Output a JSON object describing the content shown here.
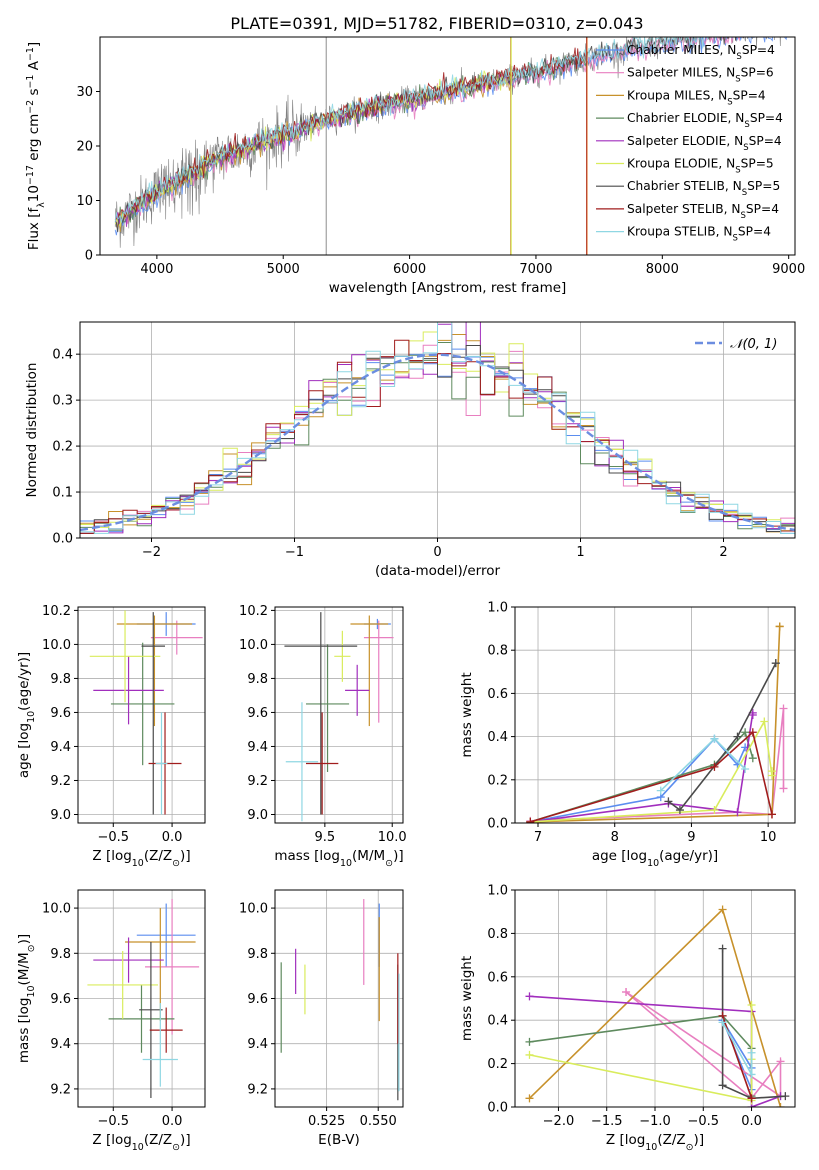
{
  "figure_title": "PLATE=0391, MJD=51782, FIBERID=0310, z=0.043",
  "model_colors": [
    "#5b8def",
    "#e87fc0",
    "#c7912b",
    "#5e8a5e",
    "#a12ebd",
    "#d9ec5c",
    "#4a4a4a",
    "#a11d1d",
    "#8fd7e3"
  ],
  "chart_data": [
    {
      "id": "spectrum",
      "type": "line",
      "xlabel": "wavelength [Angstrom, rest frame]",
      "ylabel": "Flux [f_λ10^-17 erg cm^-2 s^-1 A^-1]",
      "xlim": [
        3550,
        9050
      ],
      "ylim": [
        0,
        40
      ],
      "xticks": [
        4000,
        5000,
        6000,
        7000,
        8000,
        9000
      ],
      "yticks": [
        0,
        10,
        20,
        30
      ],
      "legend_position": "right",
      "legend": [
        "Chabrier MILES, N_SSP=4",
        "Salpeter MILES, N_SSP=6",
        "Kroupa MILES, N_SSP=4",
        "Chabrier ELODIE, N_SSP=4",
        "Salpeter ELODIE, N_SSP=4",
        "Kroupa ELODIE, N_SSP=5",
        "Chabrier STELIB, N_SSP=5",
        "Salpeter STELIB, N_SSP=4",
        "Kroupa STELIB, N_SSP=4"
      ],
      "continuum_trend": {
        "x": [
          3670,
          4000,
          4500,
          5000,
          5500,
          6000,
          6500,
          7000,
          7400,
          7800,
          8200,
          8600,
          9000
        ],
        "y": [
          6,
          11.5,
          18,
          22,
          26,
          28.5,
          31,
          33.5,
          36,
          38,
          39.5,
          41,
          42
        ]
      }
    },
    {
      "id": "residuals",
      "type": "histogram",
      "xlabel": "(data-model)/error",
      "ylabel": "Normed distribution",
      "xlim": [
        -2.5,
        2.5
      ],
      "ylim": [
        0,
        0.47
      ],
      "xticks": [
        -2,
        -1,
        0,
        1,
        2
      ],
      "yticks": [
        0.0,
        0.1,
        0.2,
        0.3,
        0.4
      ],
      "legend": [
        "𝒩(0, 1)"
      ],
      "legend_position": "upper right",
      "grid": true,
      "bin_width": 0.1,
      "reference_curve": "standard normal pdf"
    },
    {
      "id": "age_vs_Z",
      "type": "errorbar",
      "xlabel": "Z [log10(Z/Z⊙)]",
      "ylabel": "age [log10(age/yr)]",
      "xlim": [
        -0.8,
        0.28
      ],
      "ylim": [
        8.95,
        10.22
      ],
      "xticks": [
        -0.5,
        0.0
      ],
      "yticks": [
        9.0,
        9.2,
        9.4,
        9.6,
        9.8,
        10.0,
        10.2
      ],
      "grid": true,
      "points": [
        {
          "x": -0.05,
          "xerr": [
            0.25,
            0.25
          ],
          "y": 10.12,
          "yerr": [
            0.07,
            0.07
          ]
        },
        {
          "x": 0.04,
          "xerr": [
            0.22,
            0.22
          ],
          "y": 10.04,
          "yerr": [
            0.1,
            0.1
          ]
        },
        {
          "x": -0.15,
          "xerr": [
            0.32,
            0.32
          ],
          "y": 10.12,
          "yerr": [
            0.6,
            0.05
          ]
        },
        {
          "x": -0.25,
          "xerr": [
            0.27,
            0.27
          ],
          "y": 9.65,
          "yerr": [
            0.36,
            0.36
          ]
        },
        {
          "x": -0.37,
          "xerr": [
            0.3,
            0.3
          ],
          "y": 9.73,
          "yerr": [
            0.2,
            0.2
          ]
        },
        {
          "x": -0.4,
          "xerr": [
            0.3,
            0.3
          ],
          "y": 9.93,
          "yerr": [
            0.27,
            0.27
          ]
        },
        {
          "x": -0.16,
          "xerr": [
            0.1,
            0.1
          ],
          "y": 9.99,
          "yerr": [
            0.99,
            0.2
          ]
        },
        {
          "x": -0.06,
          "xerr": [
            0.14,
            0.14
          ],
          "y": 9.3,
          "yerr": [
            0.3,
            0.3
          ]
        },
        {
          "x": -0.09,
          "xerr": [
            0.05,
            0.05
          ],
          "y": 9.3,
          "yerr": [
            0.3,
            0.3
          ]
        }
      ]
    },
    {
      "id": "age_vs_mass",
      "type": "errorbar",
      "xlabel": "mass [log10(M/M⊙)]",
      "ylabel": "",
      "xlim": [
        9.13,
        10.08
      ],
      "ylim": [
        8.95,
        10.22
      ],
      "xticks": [
        9.5,
        10.0
      ],
      "yticks": [
        9.0,
        9.2,
        9.4,
        9.6,
        9.8,
        10.0,
        10.2
      ],
      "grid": true,
      "points": [
        {
          "x": 9.89,
          "xerr": [
            0.1,
            0.1
          ],
          "y": 10.12,
          "yerr": [
            0.03,
            0.03
          ]
        },
        {
          "x": 9.9,
          "xerr": [
            0.11,
            0.11
          ],
          "y": 10.04,
          "yerr": [
            0.5,
            0.1
          ]
        },
        {
          "x": 9.83,
          "xerr": [
            0.14,
            0.14
          ],
          "y": 10.12,
          "yerr": [
            0.6,
            0.05
          ]
        },
        {
          "x": 9.52,
          "xerr": [
            0.16,
            0.16
          ],
          "y": 9.65,
          "yerr": [
            0.4,
            0.35
          ]
        },
        {
          "x": 9.74,
          "xerr": [
            0.09,
            0.09
          ],
          "y": 9.73,
          "yerr": [
            0.15,
            0.15
          ]
        },
        {
          "x": 9.63,
          "xerr": [
            0.06,
            0.06
          ],
          "y": 9.93,
          "yerr": [
            0.15,
            0.15
          ]
        },
        {
          "x": 9.47,
          "xerr": [
            0.27,
            0.27
          ],
          "y": 9.99,
          "yerr": [
            0.99,
            0.2
          ]
        },
        {
          "x": 9.48,
          "xerr": [
            0.12,
            0.12
          ],
          "y": 9.3,
          "yerr": [
            0.3,
            0.3
          ]
        },
        {
          "x": 9.33,
          "xerr": [
            0.12,
            0.12
          ],
          "y": 9.31,
          "yerr": [
            0.35,
            0.35
          ]
        }
      ]
    },
    {
      "id": "weight_vs_age",
      "type": "line",
      "xlabel": "age [log10(age/yr)]",
      "ylabel": "mass weight",
      "xlim": [
        6.7,
        10.35
      ],
      "ylim": [
        0.0,
        1.0
      ],
      "xticks": [
        7,
        8,
        9,
        10
      ],
      "yticks": [
        0.0,
        0.2,
        0.4,
        0.6,
        0.8,
        1.0
      ],
      "grid": true,
      "series": [
        {
          "x": [
            6.9,
            8.6,
            9.3,
            9.6,
            9.7
          ],
          "y": [
            0.005,
            0.12,
            0.39,
            0.27,
            0.35
          ]
        },
        {
          "x": [
            6.9,
            9.6,
            10.05,
            10.2,
            10.2
          ],
          "y": [
            0.01,
            0.05,
            0.04,
            0.53,
            0.16
          ]
        },
        {
          "x": [
            6.9,
            10.05,
            10.15,
            10.15
          ],
          "y": [
            0.005,
            0.04,
            0.91,
            0.91
          ]
        },
        {
          "x": [
            6.9,
            9.3,
            9.7,
            9.8
          ],
          "y": [
            0.005,
            0.27,
            0.42,
            0.3
          ]
        },
        {
          "x": [
            6.9,
            8.7,
            9.6,
            9.8,
            9.8
          ],
          "y": [
            0.005,
            0.09,
            0.05,
            0.51,
            0.5
          ]
        },
        {
          "x": [
            6.9,
            9.3,
            9.95,
            10.05,
            10.05
          ],
          "y": [
            0.005,
            0.06,
            0.47,
            0.22,
            0.24
          ]
        },
        {
          "x": [
            8.7,
            8.85,
            9.6,
            10.1,
            10.1
          ],
          "y": [
            0.1,
            0.06,
            0.4,
            0.74,
            0.74
          ]
        },
        {
          "x": [
            6.9,
            9.3,
            9.8,
            10.05
          ],
          "y": [
            0.005,
            0.26,
            0.42,
            0.04
          ]
        },
        {
          "x": [
            8.6,
            9.3,
            9.7
          ],
          "y": [
            0.15,
            0.39,
            0.25
          ]
        }
      ]
    },
    {
      "id": "mass_vs_Z",
      "type": "errorbar",
      "xlabel": "Z [log10(Z/Z⊙)]",
      "ylabel": "mass [log10(M/M⊙)]",
      "xlim": [
        -0.8,
        0.28
      ],
      "ylim": [
        9.12,
        10.08
      ],
      "xticks": [
        -0.5,
        0.0
      ],
      "yticks": [
        9.2,
        9.4,
        9.6,
        9.8,
        10.0
      ],
      "grid": true,
      "points": [
        {
          "x": -0.05,
          "xerr": [
            0.25,
            0.25
          ],
          "y": 9.88,
          "yerr": [
            0.14,
            0.14
          ]
        },
        {
          "x": 0.0,
          "xerr": [
            0.23,
            0.23
          ],
          "y": 9.74,
          "yerr": [
            0.3,
            0.3
          ]
        },
        {
          "x": -0.1,
          "xerr": [
            0.3,
            0.3
          ],
          "y": 9.85,
          "yerr": [
            0.35,
            0.15
          ]
        },
        {
          "x": -0.26,
          "xerr": [
            0.28,
            0.28
          ],
          "y": 9.51,
          "yerr": [
            0.15,
            0.15
          ]
        },
        {
          "x": -0.37,
          "xerr": [
            0.3,
            0.3
          ],
          "y": 9.77,
          "yerr": [
            0.1,
            0.1
          ]
        },
        {
          "x": -0.42,
          "xerr": [
            0.3,
            0.3
          ],
          "y": 9.66,
          "yerr": [
            0.15,
            0.15
          ]
        },
        {
          "x": -0.18,
          "xerr": [
            0.1,
            0.1
          ],
          "y": 9.55,
          "yerr": [
            0.39,
            0.3
          ]
        },
        {
          "x": -0.05,
          "xerr": [
            0.14,
            0.14
          ],
          "y": 9.46,
          "yerr": [
            0.1,
            0.1
          ]
        },
        {
          "x": -0.1,
          "xerr": [
            0.15,
            0.15
          ],
          "y": 9.33,
          "yerr": [
            0.12,
            0.25
          ]
        }
      ]
    },
    {
      "id": "mass_vs_ebv",
      "type": "errorbar",
      "xlabel": "E(B-V)",
      "ylabel": "",
      "xlim": [
        0.5,
        0.562
      ],
      "ylim": [
        9.12,
        10.08
      ],
      "xticks": [
        0.525,
        0.55
      ],
      "yticks": [
        9.2,
        9.4,
        9.6,
        9.8,
        10.0
      ],
      "grid": true,
      "points": [
        {
          "x": 0.5505,
          "y": 9.88,
          "yerr": [
            0.14,
            0.14
          ]
        },
        {
          "x": 0.543,
          "y": 9.85,
          "yerr": [
            0.19,
            0.19
          ]
        },
        {
          "x": 0.5505,
          "y": 9.73,
          "yerr": [
            0.23,
            0.23
          ]
        },
        {
          "x": 0.503,
          "y": 9.56,
          "yerr": [
            0.2,
            0.2
          ]
        },
        {
          "x": 0.51,
          "y": 9.72,
          "yerr": [
            0.1,
            0.1
          ]
        },
        {
          "x": 0.5145,
          "y": 9.64,
          "yerr": [
            0.11,
            0.11
          ]
        },
        {
          "x": 0.5595,
          "y": 9.45,
          "yerr": [
            0.3,
            0.3
          ]
        },
        {
          "x": 0.5595,
          "y": 9.6,
          "yerr": [
            0.2,
            0.2
          ]
        },
        {
          "x": 0.56,
          "y": 9.45,
          "yerr": [
            0.26,
            0.26
          ]
        }
      ]
    },
    {
      "id": "weight_vs_Z",
      "type": "line",
      "xlabel": "Z [log10(Z/Z⊙)]",
      "ylabel": "mass weight",
      "xlim": [
        -2.45,
        0.45
      ],
      "ylim": [
        0.0,
        1.0
      ],
      "xticks": [
        -2.0,
        -1.5,
        -1.0,
        -0.5,
        0.0
      ],
      "yticks": [
        0.0,
        0.2,
        0.4,
        0.6,
        0.8,
        1.0
      ],
      "grid": true,
      "series": [
        {
          "x": [
            -0.3,
            0.0,
            0.0,
            -0.3
          ],
          "y": [
            0.4,
            0.18,
            0.08,
            0.4
          ]
        },
        {
          "x": [
            -1.3,
            0.0,
            0.3,
            0.3,
            -1.3
          ],
          "y": [
            0.53,
            0.04,
            0.21,
            0.05,
            0.53
          ]
        },
        {
          "x": [
            -2.3,
            -0.3,
            0.3
          ],
          "y": [
            0.04,
            0.91,
            0.0
          ]
        },
        {
          "x": [
            -2.3,
            -0.3,
            0.0,
            0.0
          ],
          "y": [
            0.3,
            0.42,
            0.27,
            0.05
          ]
        },
        {
          "x": [
            -2.3,
            0.0,
            0.0,
            0.3
          ],
          "y": [
            0.51,
            0.44,
            0.0,
            0.05
          ]
        },
        {
          "x": [
            -2.3,
            0.0,
            0.0,
            0.0
          ],
          "y": [
            0.24,
            0.03,
            0.47,
            0.22
          ]
        },
        {
          "x": [
            -0.3,
            -0.3,
            0.0,
            0.35
          ],
          "y": [
            0.73,
            0.1,
            0.04,
            0.05
          ]
        },
        {
          "x": [
            -0.3,
            0.0
          ],
          "y": [
            0.42,
            0.04
          ]
        },
        {
          "x": [
            -0.3,
            0.0,
            0.0
          ],
          "y": [
            0.39,
            0.15,
            0.25
          ]
        }
      ]
    }
  ]
}
